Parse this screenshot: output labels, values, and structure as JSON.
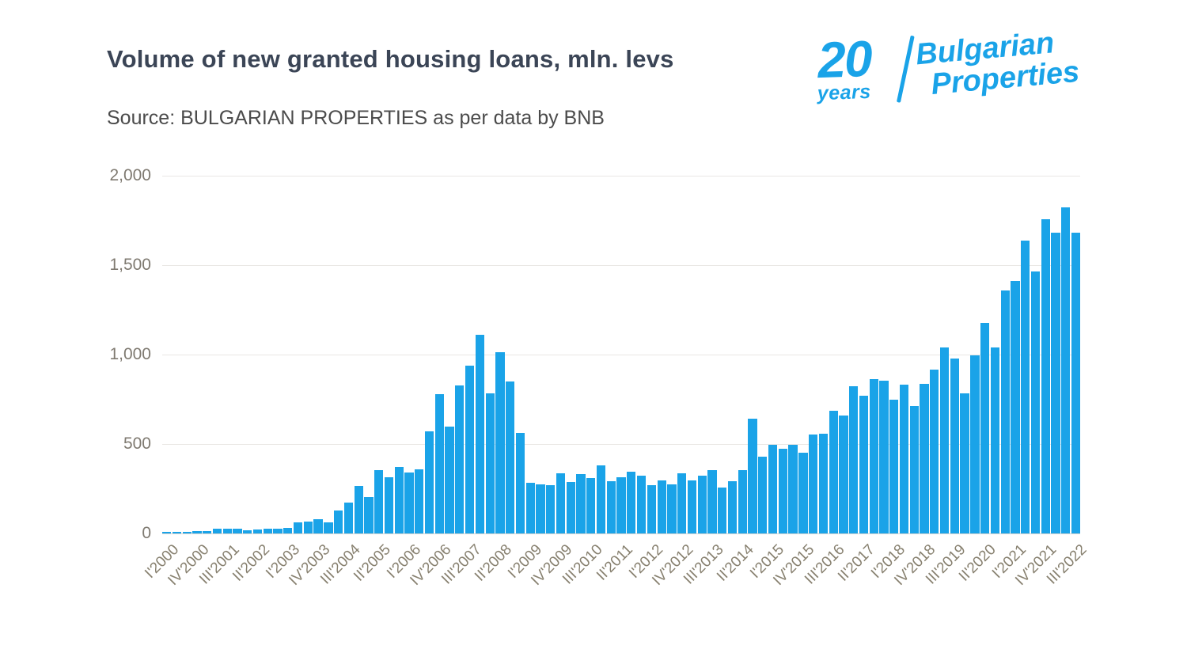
{
  "header": {
    "title": "Volume of new granted housing loans, mln. levs",
    "source": "Source: BULGARIAN PROPERTIES as per data by BNB"
  },
  "logo": {
    "number": "20",
    "years": "years",
    "brand_line1": "Bulgarian",
    "brand_line2": "Properties",
    "brand_color": "#1aa3e8"
  },
  "chart_data": {
    "type": "bar",
    "title": "Volume of new granted housing loans, mln. levs",
    "xlabel": "",
    "ylabel": "",
    "unit": "mln. levs",
    "bar_color": "#1aa3e8",
    "grid": true,
    "legend_position": "none",
    "ylim": [
      0,
      2000
    ],
    "y_tick_labels": [
      "0",
      "500",
      "1,000",
      "1,500",
      "2,000"
    ],
    "y_tick_values": [
      0,
      500,
      1000,
      1500,
      2000
    ],
    "x_tick_interval": 3,
    "x_tick_labels": [
      "I'2000",
      "IV'2000",
      "III'2001",
      "II'2002",
      "I'2003",
      "IV'2003",
      "III'2004",
      "II'2005",
      "I'2006",
      "IV'2006",
      "III'2007",
      "II'2008",
      "I'2009",
      "IV'2009",
      "III'2010",
      "II'2011",
      "I'2012",
      "IV'2012",
      "III'2013",
      "II'2014",
      "I'2015",
      "IV'2015",
      "III'2016",
      "II'2017",
      "I'2018",
      "IV'2018",
      "III'2019",
      "II'2020",
      "I'2021",
      "IV'2021",
      "III'2022"
    ],
    "values": [
      8,
      8,
      10,
      12,
      15,
      25,
      26,
      27,
      18,
      22,
      25,
      28,
      32,
      60,
      65,
      80,
      62,
      127,
      172,
      264,
      202,
      354,
      315,
      372,
      342,
      360,
      571,
      777,
      597,
      826,
      939,
      1109,
      784,
      1013,
      851,
      563,
      283,
      276,
      270,
      337,
      288,
      330,
      310,
      379,
      293,
      315,
      347,
      324,
      268,
      298,
      273,
      335,
      298,
      323,
      352,
      255,
      291,
      354,
      641,
      430,
      494,
      472,
      494,
      452,
      551,
      558,
      688,
      659,
      824,
      770,
      861,
      855,
      748,
      832,
      711,
      836,
      914,
      1040,
      976,
      784,
      994,
      1176,
      1038,
      1360,
      1411,
      1637,
      1466,
      1758,
      1682,
      1824,
      1682
    ]
  }
}
